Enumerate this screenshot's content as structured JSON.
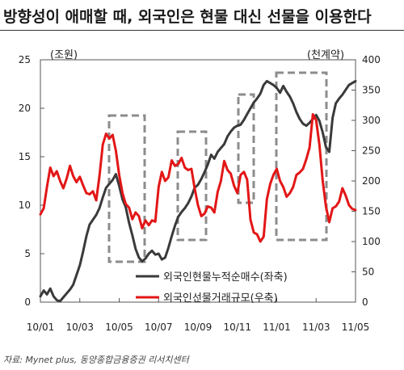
{
  "title": "방향성이 애매할 때, 외국인은 현물 대신 선물을 이용한다",
  "source": "자료: Mynet plus, 동양종합금융증권 리서치센터",
  "chart_data": {
    "type": "line",
    "left_unit": "(조원)",
    "right_unit": "(천계약)",
    "x_ticks": [
      "10/01",
      "10/03",
      "10/05",
      "10/07",
      "10/09",
      "10/11",
      "11/01",
      "11/03",
      "11/05"
    ],
    "y_left": {
      "min": 0,
      "max": 25,
      "ticks": [
        0,
        5,
        10,
        15,
        20,
        25
      ]
    },
    "y_right": {
      "min": 0,
      "max": 400,
      "ticks": [
        0,
        50,
        100,
        150,
        200,
        250,
        300,
        350,
        400
      ]
    },
    "grid": false,
    "legend_position": "bottom-right",
    "series": [
      {
        "name": "외국인현물누적순매수(좌축)",
        "axis": "left",
        "color": "#3a3a3a",
        "x": [
          0,
          2,
          4,
          6,
          8,
          10,
          12,
          14,
          16,
          18,
          20,
          22,
          24,
          26,
          28,
          30,
          32,
          34,
          36,
          38,
          40,
          42,
          44,
          46,
          48,
          50,
          52,
          54,
          56,
          58,
          60,
          62,
          64,
          66,
          68,
          70,
          72,
          74,
          76,
          78,
          80,
          82,
          84,
          86,
          88,
          90,
          92,
          94,
          96,
          98,
          100,
          102,
          104,
          106,
          108,
          110,
          112,
          114,
          116,
          118,
          120,
          122,
          124,
          126,
          128,
          130,
          132,
          134,
          136,
          138,
          140,
          142,
          144,
          146,
          148,
          150,
          152,
          154,
          156,
          158,
          160,
          162,
          164,
          166,
          168,
          170,
          172,
          174,
          176,
          178,
          180,
          182,
          184,
          186,
          188,
          190,
          192
        ],
        "values": [
          0.6,
          1.2,
          0.8,
          1.4,
          0.6,
          0.2,
          0.1,
          0.5,
          0.9,
          1.3,
          1.8,
          2.8,
          3.8,
          5.2,
          6.8,
          8.0,
          8.5,
          9.0,
          9.7,
          10.8,
          11.8,
          12.2,
          12.6,
          13.2,
          12.0,
          10.6,
          9.8,
          8.2,
          6.9,
          5.5,
          4.6,
          4.2,
          4.5,
          5.0,
          5.3,
          4.9,
          5.0,
          4.4,
          4.6,
          5.6,
          6.8,
          7.9,
          8.8,
          9.3,
          9.7,
          10.2,
          10.9,
          11.8,
          12.1,
          12.7,
          13.4,
          14.2,
          15.2,
          14.8,
          15.5,
          15.9,
          16.3,
          17.1,
          17.6,
          18.0,
          18.2,
          18.3,
          18.8,
          19.4,
          20.0,
          20.6,
          21.0,
          21.5,
          22.4,
          22.8,
          22.6,
          22.4,
          22.1,
          21.6,
          22.3,
          21.7,
          21.2,
          20.5,
          19.6,
          18.9,
          18.4,
          18.2,
          18.5,
          18.9,
          19.3,
          18.7,
          17.5,
          16.0,
          15.5,
          19.0,
          20.5,
          21.0,
          21.4,
          21.9,
          22.4,
          22.6,
          22.8
        ]
      },
      {
        "name": "외국인선물거래규모(우축)",
        "axis": "right",
        "color": "#e31616",
        "x": [
          0,
          2,
          4,
          6,
          8,
          10,
          12,
          14,
          16,
          18,
          20,
          22,
          24,
          26,
          28,
          30,
          32,
          34,
          36,
          38,
          40,
          42,
          44,
          46,
          48,
          50,
          52,
          54,
          56,
          58,
          60,
          62,
          64,
          66,
          68,
          70,
          72,
          74,
          76,
          78,
          80,
          82,
          84,
          86,
          88,
          90,
          92,
          94,
          96,
          98,
          100,
          102,
          104,
          106,
          108,
          110,
          112,
          114,
          116,
          118,
          120,
          122,
          124,
          126,
          128,
          130,
          132,
          134,
          136,
          138,
          140,
          142,
          144,
          146,
          148,
          150,
          152,
          154,
          156,
          158,
          160,
          162,
          164,
          166,
          168,
          170,
          172,
          174,
          176,
          178,
          180,
          182,
          184,
          186,
          188,
          190,
          192
        ],
        "values": [
          145,
          155,
          190,
          222,
          208,
          216,
          200,
          188,
          204,
          225,
          208,
          198,
          207,
          193,
          180,
          178,
          183,
          168,
          208,
          260,
          278,
          270,
          276,
          250,
          210,
          180,
          162,
          156,
          137,
          148,
          142,
          122,
          135,
          127,
          135,
          133,
          190,
          215,
          200,
          206,
          234,
          225,
          228,
          238,
          222,
          218,
          220,
          188,
          160,
          142,
          146,
          158,
          156,
          148,
          182,
          200,
          233,
          218,
          212,
          192,
          180,
          210,
          215,
          202,
          136,
          115,
          112,
          100,
          108,
          170,
          195,
          210,
          220,
          200,
          190,
          174,
          180,
          190,
          210,
          214,
          220,
          236,
          255,
          310,
          300,
          260,
          200,
          158,
          132,
          155,
          158,
          166,
          188,
          176,
          160,
          154,
          152
        ]
      }
    ]
  }
}
